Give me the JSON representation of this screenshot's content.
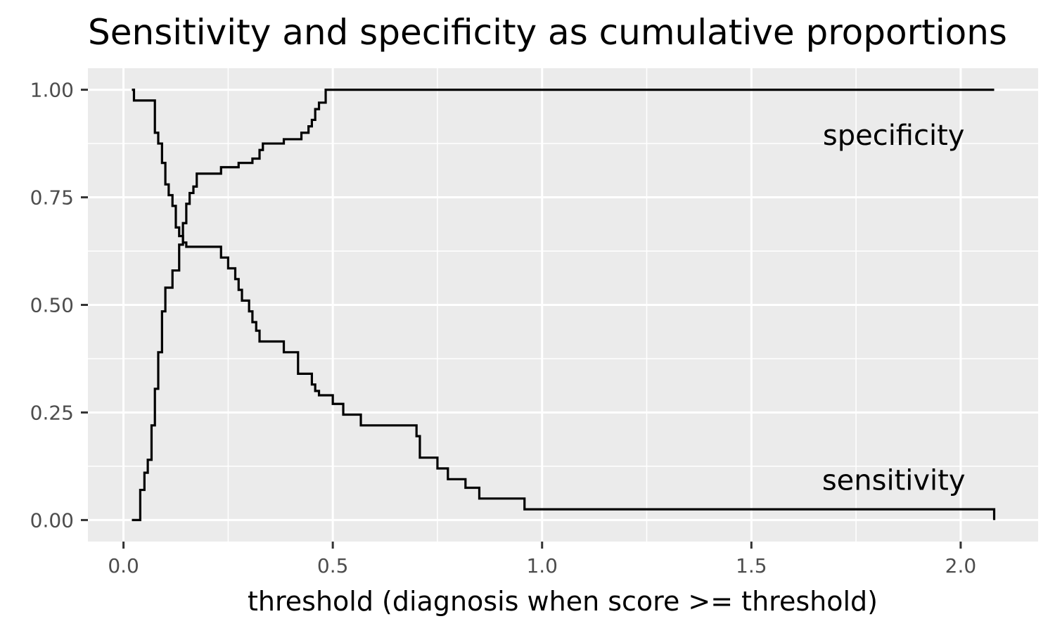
{
  "chart_data": {
    "type": "line",
    "title": "Sensitivity and specificity as cumulative proportions",
    "xlabel": "threshold (diagnosis when score >= threshold)",
    "ylabel": "",
    "xlim": [
      -0.085,
      2.185
    ],
    "ylim": [
      -0.05,
      1.05
    ],
    "x_ticks": [
      0.0,
      0.5,
      1.0,
      1.5,
      2.0
    ],
    "x_tick_labels": [
      "0.0",
      "0.5",
      "1.0",
      "1.5",
      "2.0"
    ],
    "y_ticks": [
      0.0,
      0.25,
      0.5,
      0.75,
      1.0
    ],
    "y_tick_labels": [
      "0.00",
      "0.25",
      "0.50",
      "0.75",
      "1.00"
    ],
    "grid": true,
    "background_color": "#ebebeb",
    "grid_color": "#ffffff",
    "line_color": "#000000",
    "annotations": [
      {
        "text": "specificity",
        "x": 1.84,
        "y": 0.895
      },
      {
        "text": "sensitivity",
        "x": 1.84,
        "y": 0.093
      }
    ],
    "series": [
      {
        "step": "hv",
        "x": [
          0.02,
          0.025,
          0.075,
          0.083,
          0.092,
          0.1,
          0.108,
          0.117,
          0.125,
          0.133,
          0.142,
          0.15,
          0.158,
          0.167,
          0.183,
          0.233,
          0.25,
          0.267,
          0.275,
          0.283,
          0.3,
          0.308,
          0.317,
          0.325,
          0.342,
          0.383,
          0.417,
          0.45,
          0.458,
          0.467,
          0.5,
          0.525,
          0.567,
          0.583,
          0.6,
          0.7,
          0.708,
          0.725,
          0.75,
          0.775,
          0.817,
          0.85,
          0.867,
          0.917,
          0.958,
          2.08
        ],
        "y": [
          1.0,
          0.975,
          0.9,
          0.875,
          0.83,
          0.78,
          0.755,
          0.73,
          0.68,
          0.66,
          0.645,
          0.635,
          0.635,
          0.635,
          0.635,
          0.61,
          0.585,
          0.56,
          0.535,
          0.51,
          0.485,
          0.46,
          0.44,
          0.415,
          0.415,
          0.39,
          0.34,
          0.315,
          0.3,
          0.29,
          0.27,
          0.245,
          0.22,
          0.22,
          0.22,
          0.195,
          0.145,
          0.145,
          0.12,
          0.095,
          0.075,
          0.05,
          0.05,
          0.05,
          0.025,
          0.0
        ]
      },
      {
        "step": "hv",
        "x": [
          0.02,
          0.04,
          0.05,
          0.058,
          0.067,
          0.075,
          0.083,
          0.092,
          0.1,
          0.108,
          0.117,
          0.133,
          0.142,
          0.15,
          0.158,
          0.167,
          0.175,
          0.183,
          0.192,
          0.233,
          0.275,
          0.308,
          0.325,
          0.333,
          0.342,
          0.383,
          0.425,
          0.442,
          0.45,
          0.458,
          0.467,
          0.483,
          0.5,
          2.08
        ],
        "y": [
          0.0,
          0.07,
          0.11,
          0.14,
          0.22,
          0.305,
          0.39,
          0.485,
          0.54,
          0.54,
          0.58,
          0.64,
          0.69,
          0.735,
          0.76,
          0.775,
          0.805,
          0.805,
          0.805,
          0.82,
          0.83,
          0.84,
          0.86,
          0.875,
          0.875,
          0.885,
          0.9,
          0.915,
          0.93,
          0.955,
          0.97,
          1.0,
          1.0,
          1.0
        ]
      }
    ]
  }
}
